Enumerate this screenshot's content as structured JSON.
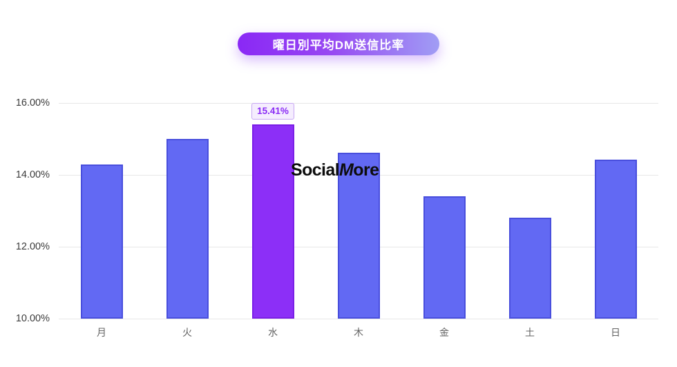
{
  "page": {
    "background": "#ffffff"
  },
  "title_badge": {
    "label": "曜日別平均DM送信比率",
    "gradient_start": "#8a28f5",
    "gradient_end": "#a09df4",
    "text_color": "#ffffff"
  },
  "watermark": {
    "part1": "Social",
    "part2": "M",
    "part3": "ore",
    "color": "#0d0d0d"
  },
  "chart_data": {
    "type": "bar",
    "title": "曜日別平均DM送信比率",
    "xlabel": "",
    "ylabel": "",
    "categories": [
      "月",
      "火",
      "水",
      "木",
      "金",
      "土",
      "日"
    ],
    "values": [
      14.28,
      15.0,
      15.41,
      14.62,
      13.4,
      12.81,
      14.43
    ],
    "highlighted_index": 2,
    "highlight_label": "15.41%",
    "y_ticks": [
      "16.00%",
      "14.00%",
      "12.00%",
      "10.00%"
    ],
    "ylim": [
      10,
      16
    ],
    "grid": true,
    "legend": false,
    "bar_color": "#6269f3",
    "bar_border_color": "#484edd",
    "highlight_color": "#8c2ff7",
    "highlight_border_color": "#7a1ee6",
    "grid_color": "#e7e7e7",
    "y_tick_color": "#3c3c3c",
    "x_tick_color": "#636363",
    "tooltip_bg": "#f5edfe",
    "tooltip_border": "#c7a6f3",
    "tooltip_text_color": "#8a2bf5"
  }
}
